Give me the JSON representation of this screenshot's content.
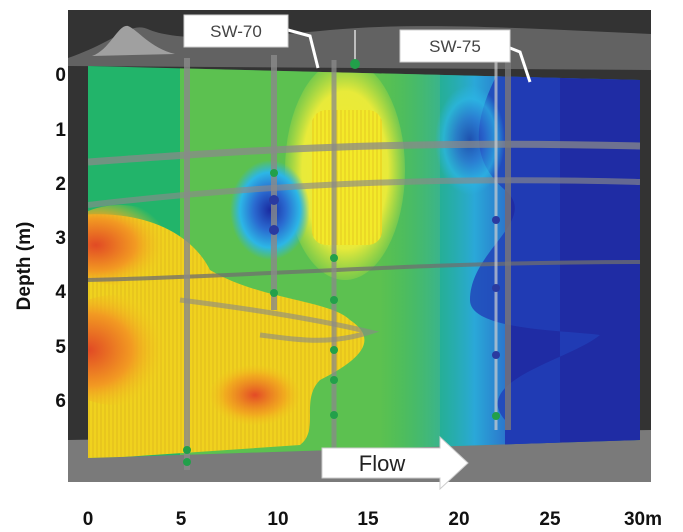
{
  "figure": {
    "y_axis_title": "Depth (m)",
    "x_ticks": [
      "0",
      "5",
      "10",
      "15",
      "20",
      "25",
      "30m"
    ],
    "y_ticks": [
      "0",
      "1",
      "2",
      "3",
      "4",
      "5",
      "6"
    ],
    "wells": [
      {
        "label": "SW-70"
      },
      {
        "label": "SW-75"
      }
    ],
    "flow_label": "Flow",
    "colors": {
      "background": "#3a3a3a",
      "ground": "#7a7a7a",
      "high": "#e8402a",
      "mid_high": "#f0d020",
      "mid": "#8ccc3a",
      "mid_low": "#22b46a",
      "low": "#2030a8",
      "edge_low": "#29a8e8"
    }
  }
}
